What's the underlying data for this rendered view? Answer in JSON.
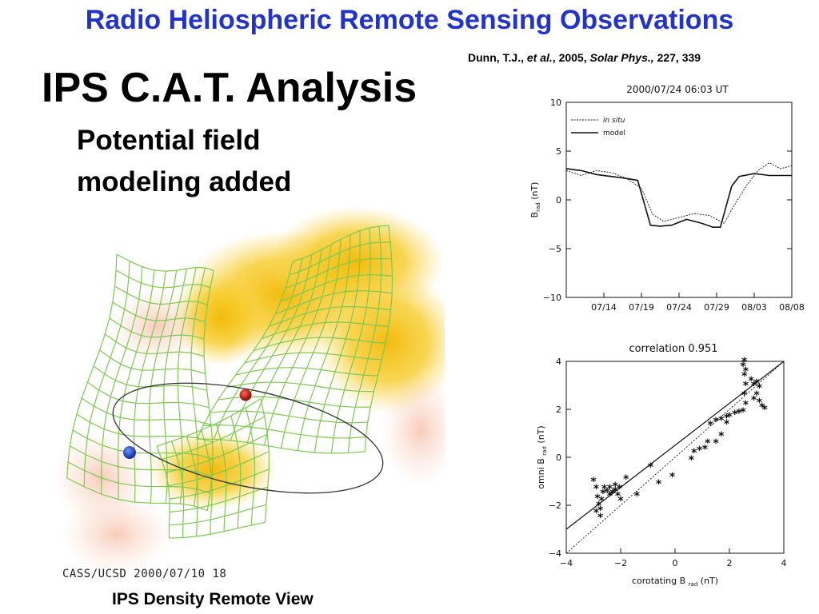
{
  "slide": {
    "title": "Radio Heliospheric Remote Sensing Observations",
    "citation": {
      "author": "Dunn, T.J.,",
      "etal": "et al.",
      "year": ", 2005,",
      "journal": "Solar Phys.,",
      "ref": "227, 339"
    },
    "heading": "IPS C.A.T. Analysis",
    "subheading_line1": "Potential field",
    "subheading_line2": "modeling added",
    "visualization": {
      "stamp": "CASS/UCSD  2000/07/10 18",
      "caption": "IPS Density Remote View",
      "colors": {
        "mesh": "#7ec850",
        "density": "#f5c518",
        "earth": "#1a4fd6",
        "sun": "#c81e10",
        "orbit": "#333333"
      }
    }
  },
  "chart_data": [
    {
      "type": "line",
      "title": "2000/07/24 06:03 UT",
      "ylabel": "B",
      "ylabel_sub": "rad",
      "ylabel_unit": "(nT)",
      "ylim": [
        -10,
        10
      ],
      "yticks": [
        10,
        5,
        0,
        -5,
        -10
      ],
      "xticks": [
        "07/14",
        "07/19",
        "07/24",
        "07/29",
        "08/03",
        "08/08"
      ],
      "x_domain": [
        0,
        30
      ],
      "xtick_positions": [
        5,
        10,
        15,
        20,
        25,
        30
      ],
      "legend_placement": "top-left",
      "series": [
        {
          "name": "in situ",
          "style": "dotted",
          "x": [
            0,
            2,
            4,
            6,
            8,
            10,
            11.5,
            13,
            15,
            17,
            19,
            21,
            22,
            24,
            25.5,
            27,
            28.5,
            30
          ],
          "y": [
            3.0,
            2.5,
            3.0,
            2.8,
            2.2,
            1.2,
            -1.5,
            -2.2,
            -1.8,
            -1.4,
            -1.6,
            -2.4,
            -1.0,
            1.5,
            3.0,
            3.8,
            3.2,
            3.5
          ]
        },
        {
          "name": "model",
          "style": "solid",
          "x": [
            0,
            2,
            4,
            6,
            8,
            9.5,
            11.2,
            12.5,
            14,
            16,
            18,
            19.5,
            20.5,
            22,
            23,
            25,
            27,
            30
          ],
          "y": [
            3.2,
            3.0,
            2.6,
            2.4,
            2.2,
            2.0,
            -2.6,
            -2.7,
            -2.6,
            -2.0,
            -2.4,
            -2.8,
            -2.8,
            1.4,
            2.4,
            2.7,
            2.5,
            2.5
          ]
        }
      ]
    },
    {
      "type": "scatter",
      "title": "correlation 0.951",
      "xlabel": "corotating B",
      "xlabel_sub": "rad",
      "xlabel_unit": "(nT)",
      "ylabel": "omni B",
      "ylabel_sub": "rad",
      "ylabel_unit": "(nT)",
      "xlim": [
        -4,
        4
      ],
      "ylim": [
        -4,
        4
      ],
      "xticks": [
        -4,
        -2,
        0,
        2,
        4
      ],
      "yticks": [
        4,
        2,
        0,
        -2,
        -4
      ],
      "lines": [
        {
          "style": "solid",
          "from": [
            -4,
            -3.0
          ],
          "to": [
            4,
            4.0
          ]
        },
        {
          "style": "dotted",
          "from": [
            -4,
            -4.0
          ],
          "to": [
            4,
            4.0
          ]
        }
      ],
      "points": [
        [
          -3.0,
          -1.0
        ],
        [
          -2.9,
          -1.3
        ],
        [
          -2.85,
          -1.7
        ],
        [
          -2.8,
          -2.0
        ],
        [
          -2.75,
          -2.2
        ],
        [
          -2.7,
          -1.8
        ],
        [
          -2.65,
          -1.5
        ],
        [
          -2.6,
          -1.3
        ],
        [
          -2.5,
          -1.45
        ],
        [
          -2.4,
          -1.6
        ],
        [
          -2.3,
          -1.5
        ],
        [
          -2.2,
          -1.4
        ],
        [
          -2.1,
          -1.6
        ],
        [
          -2.0,
          -1.8
        ],
        [
          -2.05,
          -1.3
        ],
        [
          -2.2,
          -1.2
        ],
        [
          -2.4,
          -1.3
        ],
        [
          -2.9,
          -2.3
        ],
        [
          -2.75,
          -2.5
        ],
        [
          -1.8,
          -0.9
        ],
        [
          -1.4,
          -1.6
        ],
        [
          -0.9,
          -0.4
        ],
        [
          -0.6,
          -1.1
        ],
        [
          -0.1,
          -0.8
        ],
        [
          0.6,
          -0.1
        ],
        [
          0.7,
          0.2
        ],
        [
          0.9,
          0.3
        ],
        [
          1.1,
          0.35
        ],
        [
          1.2,
          0.6
        ],
        [
          1.5,
          0.6
        ],
        [
          1.7,
          0.9
        ],
        [
          1.9,
          1.4
        ],
        [
          1.3,
          1.35
        ],
        [
          1.5,
          1.5
        ],
        [
          1.7,
          1.55
        ],
        [
          1.9,
          1.65
        ],
        [
          2.0,
          1.7
        ],
        [
          2.2,
          1.8
        ],
        [
          2.35,
          1.85
        ],
        [
          2.5,
          1.9
        ],
        [
          2.6,
          2.2
        ],
        [
          2.55,
          2.6
        ],
        [
          2.6,
          3.0
        ],
        [
          2.55,
          3.4
        ],
        [
          2.5,
          3.8
        ],
        [
          2.55,
          4.0
        ],
        [
          2.6,
          3.6
        ],
        [
          2.8,
          3.2
        ],
        [
          2.9,
          3.0
        ],
        [
          3.0,
          2.6
        ],
        [
          3.1,
          2.3
        ],
        [
          3.2,
          2.1
        ],
        [
          3.3,
          2.0
        ],
        [
          3.1,
          2.9
        ],
        [
          2.9,
          2.4
        ],
        [
          3.0,
          3.1
        ]
      ]
    }
  ]
}
